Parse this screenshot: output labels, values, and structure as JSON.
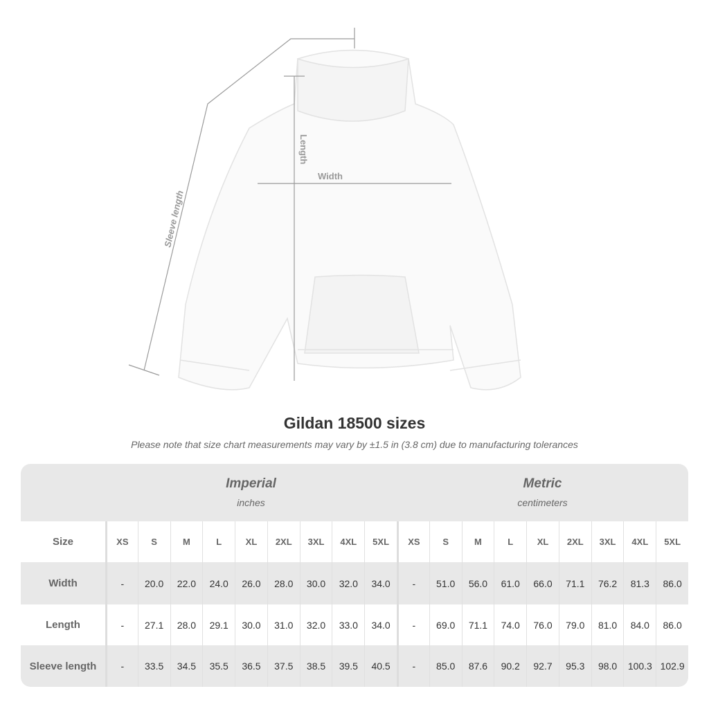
{
  "diagram": {
    "sleeve_label": "Sleeve length",
    "length_label": "Length",
    "width_label": "Width"
  },
  "title": "Gildan 18500 sizes",
  "note": "Please note that size chart measurements may vary by ±1.5 in (3.8 cm) due to manufacturing tolerances",
  "imperial": {
    "heading": "Imperial",
    "unit": "inches"
  },
  "metric": {
    "heading": "Metric",
    "unit": "centimeters"
  },
  "table": {
    "header_label": "Size",
    "sizes": [
      "XS",
      "S",
      "M",
      "L",
      "XL",
      "2XL",
      "3XL",
      "4XL",
      "5XL"
    ],
    "rows": [
      {
        "label": "Width",
        "imperial": [
          "-",
          "20.0",
          "22.0",
          "24.0",
          "26.0",
          "28.0",
          "30.0",
          "32.0",
          "34.0"
        ],
        "metric": [
          "-",
          "51.0",
          "56.0",
          "61.0",
          "66.0",
          "71.1",
          "76.2",
          "81.3",
          "86.0"
        ]
      },
      {
        "label": "Length",
        "imperial": [
          "-",
          "27.1",
          "28.0",
          "29.1",
          "30.0",
          "31.0",
          "32.0",
          "33.0",
          "34.0"
        ],
        "metric": [
          "-",
          "69.0",
          "71.1",
          "74.0",
          "76.0",
          "79.0",
          "81.0",
          "84.0",
          "86.0"
        ]
      },
      {
        "label": "Sleeve length",
        "imperial": [
          "-",
          "33.5",
          "34.5",
          "35.5",
          "36.5",
          "37.5",
          "38.5",
          "39.5",
          "40.5"
        ],
        "metric": [
          "-",
          "85.0",
          "87.6",
          "90.2",
          "92.7",
          "95.3",
          "98.0",
          "100.3",
          "102.9"
        ]
      }
    ]
  }
}
